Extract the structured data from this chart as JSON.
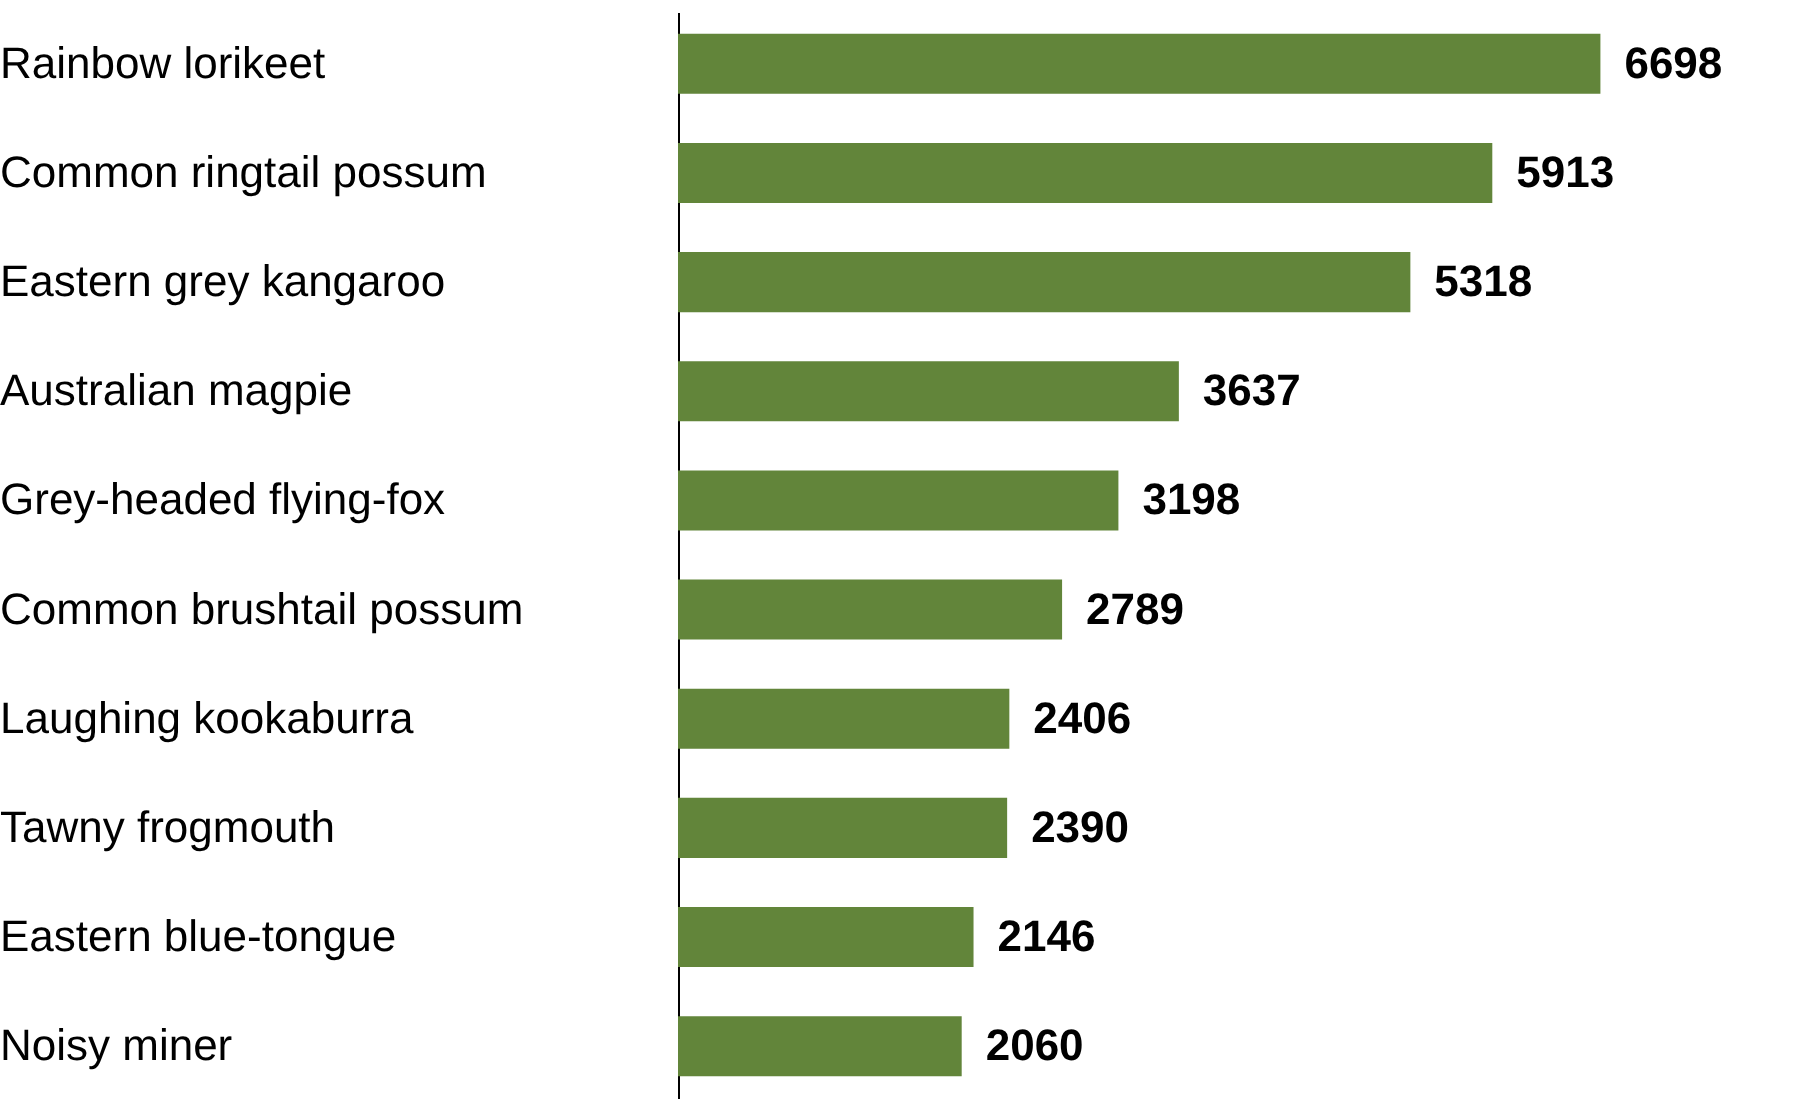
{
  "chart_data": {
    "type": "bar",
    "orientation": "horizontal",
    "categories": [
      "Rainbow lorikeet",
      "Common ringtail possum",
      "Eastern grey kangaroo",
      "Australian magpie",
      "Grey-headed flying-fox",
      "Common brushtail possum",
      "Laughing kookaburra",
      "Tawny frogmouth",
      "Eastern blue-tongue",
      "Noisy miner"
    ],
    "values": [
      6698,
      5913,
      5318,
      3637,
      3198,
      2789,
      2406,
      2390,
      2146,
      2060
    ],
    "color": "#62853a",
    "data_labels": true,
    "tick_labels": "y"
  }
}
